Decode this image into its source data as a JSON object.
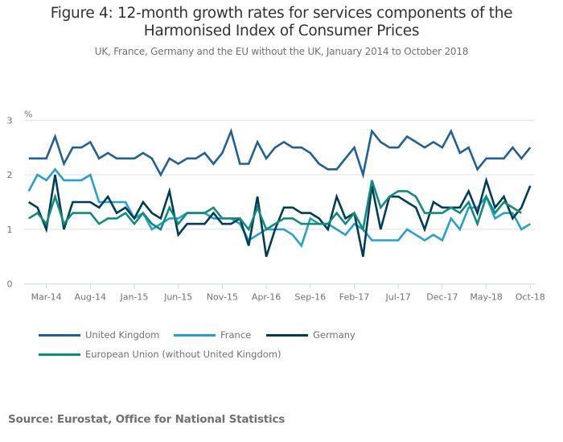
{
  "title": "Figure 4: 12-month growth rates for services components of the Harmonised Index of Consumer Prices",
  "title_line1": "Figure 4: 12-month growth rates for services components of the",
  "title_line2": "Harmonised Index of Consumer Prices",
  "subtitle": "UK, France, Germany and the EU without the UK, January 2014 to October 2018",
  "source": "Source: Eurostat, Office for National Statistics",
  "chart_data": {
    "type": "line",
    "title": "Figure 4: 12-month growth rates for services components of the Harmonised Index of Consumer Prices",
    "subtitle": "UK, France, Germany and the EU without the UK, January 2014 to October 2018",
    "xlabel": "",
    "ylabel": "%",
    "ylim": [
      0,
      3
    ],
    "yticks": [
      0,
      1,
      2,
      3
    ],
    "grid": true,
    "legend_position": "bottom",
    "x": [
      "Jan-14",
      "Feb-14",
      "Mar-14",
      "Apr-14",
      "May-14",
      "Jun-14",
      "Jul-14",
      "Aug-14",
      "Sep-14",
      "Oct-14",
      "Nov-14",
      "Dec-14",
      "Jan-15",
      "Feb-15",
      "Mar-15",
      "Apr-15",
      "May-15",
      "Jun-15",
      "Jul-15",
      "Aug-15",
      "Sep-15",
      "Oct-15",
      "Nov-15",
      "Dec-15",
      "Jan-16",
      "Feb-16",
      "Mar-16",
      "Apr-16",
      "May-16",
      "Jun-16",
      "Jul-16",
      "Aug-16",
      "Sep-16",
      "Oct-16",
      "Nov-16",
      "Dec-16",
      "Jan-17",
      "Feb-17",
      "Mar-17",
      "Apr-17",
      "May-17",
      "Jun-17",
      "Jul-17",
      "Aug-17",
      "Sep-17",
      "Oct-17",
      "Nov-17",
      "Dec-17",
      "Jan-18",
      "Feb-18",
      "Mar-18",
      "Apr-18",
      "May-18",
      "Jun-18",
      "Jul-18",
      "Aug-18",
      "Sep-18",
      "Oct-18"
    ],
    "xtick_labels": [
      "Mar-14",
      "Aug-14",
      "Jan-15",
      "Jun-15",
      "Nov-15",
      "Apr-16",
      "Sep-16",
      "Feb-17",
      "Jul-17",
      "Dec-17",
      "May-18",
      "Oct-18"
    ],
    "series": [
      {
        "name": "United Kingdom",
        "color": "#206095",
        "values": [
          2.3,
          2.3,
          2.3,
          2.7,
          2.2,
          2.5,
          2.5,
          2.6,
          2.3,
          2.4,
          2.3,
          2.3,
          2.3,
          2.4,
          2.3,
          2.0,
          2.3,
          2.2,
          2.3,
          2.3,
          2.4,
          2.2,
          2.4,
          2.8,
          2.2,
          2.2,
          2.6,
          2.3,
          2.5,
          2.6,
          2.5,
          2.5,
          2.4,
          2.2,
          2.1,
          2.1,
          2.3,
          2.5,
          2.0,
          2.8,
          2.6,
          2.5,
          2.5,
          2.7,
          2.6,
          2.5,
          2.6,
          2.5,
          2.8,
          2.4,
          2.5,
          2.1,
          2.3,
          2.3,
          2.3,
          2.5,
          2.3,
          2.5
        ]
      },
      {
        "name": "France",
        "color": "#27a0cc",
        "values": [
          1.7,
          2.0,
          1.9,
          2.1,
          1.9,
          1.9,
          1.9,
          2.0,
          1.5,
          1.5,
          1.5,
          1.5,
          1.2,
          1.3,
          1.0,
          1.1,
          1.2,
          1.2,
          1.3,
          1.3,
          1.3,
          1.2,
          1.2,
          1.2,
          1.1,
          0.8,
          0.9,
          1.0,
          1.0,
          1.0,
          0.9,
          0.7,
          1.2,
          1.1,
          1.1,
          1.0,
          0.9,
          1.1,
          1.0,
          0.8,
          0.8,
          0.8,
          0.8,
          1.0,
          0.9,
          0.8,
          0.9,
          0.8,
          1.2,
          1.0,
          1.4,
          1.4,
          1.6,
          1.2,
          1.3,
          1.3,
          1.0,
          1.1
        ]
      },
      {
        "name": "Germany",
        "color": "#003c57",
        "values": [
          1.5,
          1.4,
          1.0,
          2.0,
          1.0,
          1.5,
          1.5,
          1.5,
          1.4,
          1.6,
          1.3,
          1.4,
          1.2,
          1.5,
          1.3,
          1.2,
          1.7,
          0.9,
          1.1,
          1.1,
          1.1,
          1.3,
          1.1,
          1.1,
          1.2,
          0.7,
          1.6,
          0.5,
          1.0,
          1.4,
          1.4,
          1.3,
          1.3,
          1.2,
          1.0,
          1.6,
          1.2,
          1.3,
          0.5,
          1.8,
          1.0,
          1.6,
          1.6,
          1.5,
          1.4,
          1.0,
          1.5,
          1.4,
          1.4,
          1.4,
          1.7,
          1.3,
          1.9,
          1.4,
          1.6,
          1.2,
          1.4,
          1.8
        ]
      },
      {
        "name": "European Union (without United Kingdom)",
        "color": "#118c7b",
        "values": [
          1.2,
          1.3,
          1.1,
          1.6,
          1.1,
          1.3,
          1.3,
          1.3,
          1.1,
          1.2,
          1.2,
          1.3,
          1.1,
          1.3,
          1.1,
          1.0,
          1.4,
          1.1,
          1.3,
          1.3,
          1.3,
          1.4,
          1.2,
          1.2,
          1.2,
          1.0,
          1.4,
          1.0,
          1.1,
          1.2,
          1.2,
          1.1,
          1.1,
          1.1,
          1.1,
          1.3,
          1.1,
          1.3,
          1.0,
          1.9,
          1.4,
          1.6,
          1.7,
          1.7,
          1.6,
          1.3,
          1.3,
          1.3,
          1.4,
          1.3,
          1.5,
          1.1,
          1.6,
          1.3,
          1.5,
          1.4,
          1.3,
          null
        ]
      }
    ]
  },
  "legend": {
    "items": [
      {
        "label": "United Kingdom",
        "color": "#206095"
      },
      {
        "label": "France",
        "color": "#27a0cc"
      },
      {
        "label": "Germany",
        "color": "#003c57"
      },
      {
        "label": "European Union (without United Kingdom)",
        "color": "#118c7b"
      }
    ]
  }
}
